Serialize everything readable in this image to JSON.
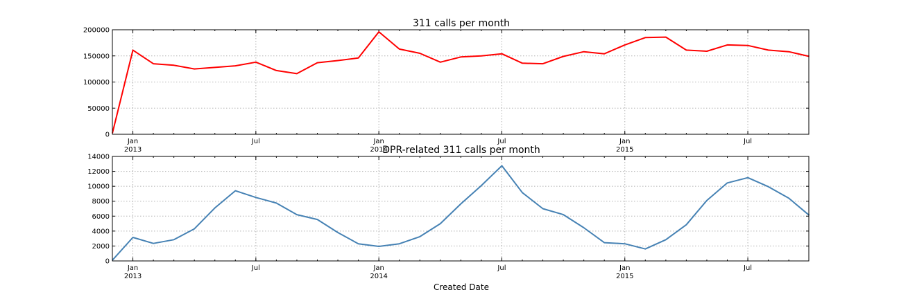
{
  "chart_data": [
    {
      "type": "line",
      "title": "311 calls per month",
      "xlabel": "",
      "ylabel": "",
      "ylim": [
        0,
        200000
      ],
      "yticks": [
        "0",
        "50000",
        "100000",
        "150000",
        "200000"
      ],
      "x": [
        "2012-12",
        "2013-01",
        "2013-02",
        "2013-03",
        "2013-04",
        "2013-05",
        "2013-06",
        "2013-07",
        "2013-08",
        "2013-09",
        "2013-10",
        "2013-11",
        "2013-12",
        "2014-01",
        "2014-02",
        "2014-03",
        "2014-04",
        "2014-05",
        "2014-06",
        "2014-07",
        "2014-08",
        "2014-09",
        "2014-10",
        "2014-11",
        "2014-12",
        "2015-01",
        "2015-02",
        "2015-03",
        "2015-04",
        "2015-05",
        "2015-06",
        "2015-07",
        "2015-08",
        "2015-09",
        "2015-10"
      ],
      "xticks": [
        {
          "x": "2013-01",
          "label": "Jan",
          "sub": "2013"
        },
        {
          "x": "2013-07",
          "label": "Jul",
          "sub": ""
        },
        {
          "x": "2014-01",
          "label": "Jan",
          "sub": "2014"
        },
        {
          "x": "2014-07",
          "label": "Jul",
          "sub": ""
        },
        {
          "x": "2015-01",
          "label": "Jan",
          "sub": "2015"
        },
        {
          "x": "2015-07",
          "label": "Jul",
          "sub": ""
        }
      ],
      "grid": true,
      "series": [
        {
          "color": "#ff0000",
          "values": [
            2000,
            161000,
            135000,
            132000,
            125000,
            128000,
            131000,
            138000,
            122000,
            116000,
            137000,
            141000,
            146000,
            196000,
            163000,
            155000,
            138000,
            148000,
            150000,
            154000,
            136000,
            135000,
            149000,
            158000,
            154000,
            171000,
            185000,
            186000,
            161000,
            159000,
            171000,
            170000,
            161000,
            158000,
            149000
          ]
        }
      ]
    },
    {
      "type": "line",
      "title": "DPR-related 311 calls per month",
      "xlabel": "Created Date",
      "ylabel": "",
      "ylim": [
        0,
        14000
      ],
      "yticks": [
        "0",
        "2000",
        "4000",
        "6000",
        "8000",
        "10000",
        "12000",
        "14000"
      ],
      "x": [
        "2012-12",
        "2013-01",
        "2013-02",
        "2013-03",
        "2013-04",
        "2013-05",
        "2013-06",
        "2013-07",
        "2013-08",
        "2013-09",
        "2013-10",
        "2013-11",
        "2013-12",
        "2014-01",
        "2014-02",
        "2014-03",
        "2014-04",
        "2014-05",
        "2014-06",
        "2014-07",
        "2014-08",
        "2014-09",
        "2014-10",
        "2014-11",
        "2014-12",
        "2015-01",
        "2015-02",
        "2015-03",
        "2015-04",
        "2015-05",
        "2015-06",
        "2015-07",
        "2015-08",
        "2015-09",
        "2015-10"
      ],
      "xticks": [
        {
          "x": "2013-01",
          "label": "Jan",
          "sub": "2013"
        },
        {
          "x": "2013-07",
          "label": "Jul",
          "sub": ""
        },
        {
          "x": "2014-01",
          "label": "Jan",
          "sub": "2014"
        },
        {
          "x": "2014-07",
          "label": "Jul",
          "sub": ""
        },
        {
          "x": "2015-01",
          "label": "Jan",
          "sub": "2015"
        },
        {
          "x": "2015-07",
          "label": "Jul",
          "sub": ""
        }
      ],
      "grid": true,
      "series": [
        {
          "color": "#4682b4",
          "values": [
            100,
            3150,
            2350,
            2850,
            4300,
            7100,
            9400,
            8500,
            7750,
            6200,
            5550,
            3800,
            2300,
            1950,
            2300,
            3250,
            5000,
            7650,
            10100,
            12750,
            9150,
            7000,
            6200,
            4450,
            2450,
            2300,
            1600,
            2850,
            4850,
            8100,
            10450,
            11150,
            9950,
            8400,
            6100
          ]
        }
      ]
    }
  ]
}
